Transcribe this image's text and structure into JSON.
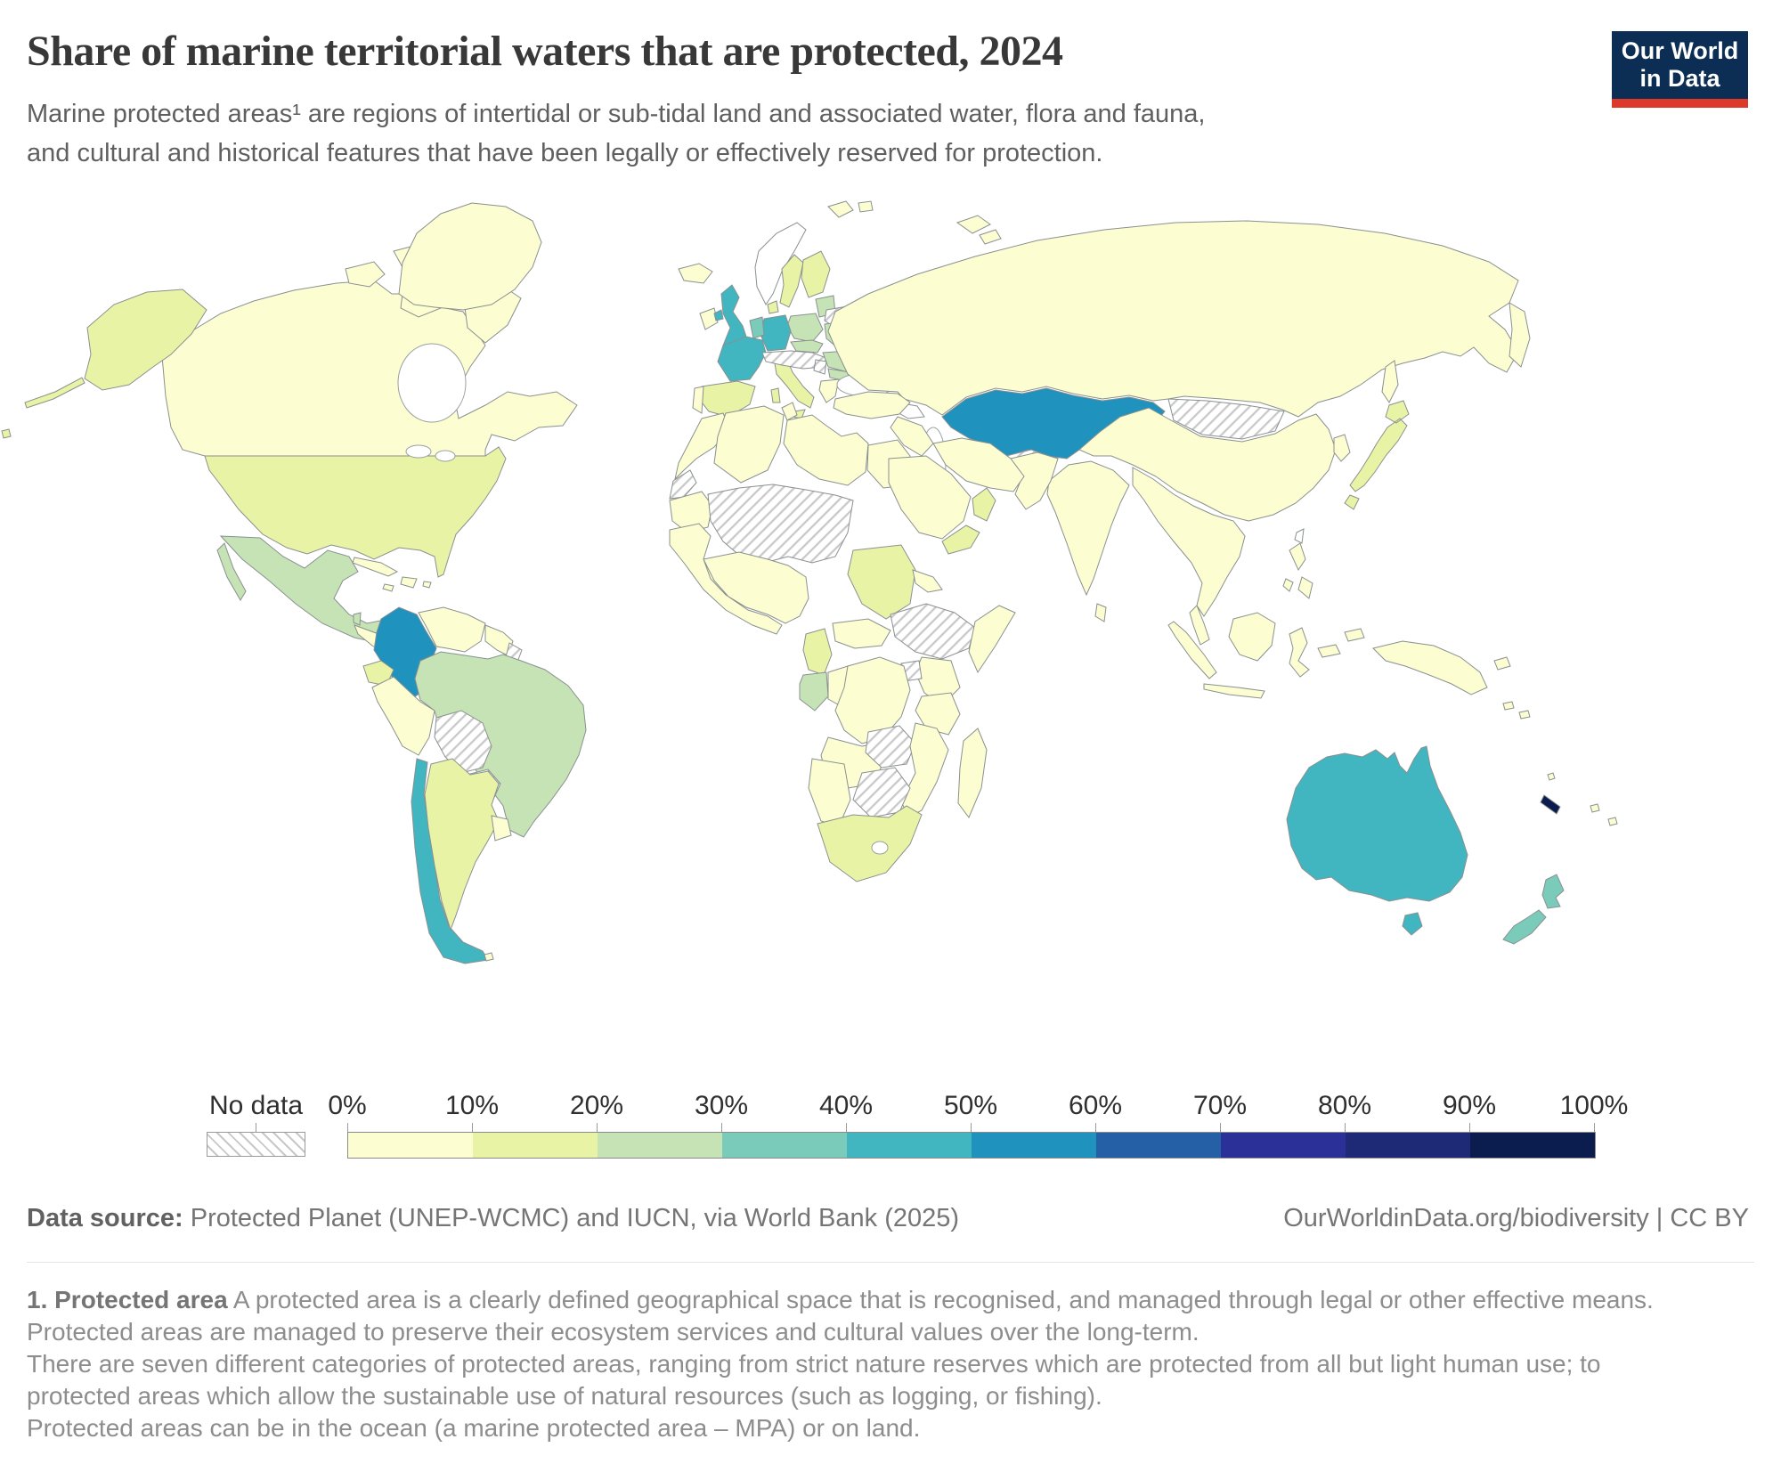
{
  "header": {
    "title": "Share of marine territorial waters that are protected, 2024",
    "subtitle": "Marine protected areas¹ are regions of intertidal or sub-tidal land and associated water, flora and fauna, and cultural and historical features that have been legally or effectively reserved for protection.",
    "logo": {
      "line1": "Our World",
      "line2": "in Data",
      "bg_color": "#0d2e54",
      "accent_color": "#dc392b"
    }
  },
  "legend": {
    "no_data_label": "No data",
    "ticks": [
      "0%",
      "10%",
      "20%",
      "30%",
      "40%",
      "50%",
      "60%",
      "70%",
      "80%",
      "90%",
      "100%"
    ],
    "bin_ranges": [
      "0-10%",
      "10-20%",
      "20-30%",
      "30-40%",
      "40-50%",
      "50-60%",
      "60-70%",
      "70-80%",
      "80-90%",
      "90-100%"
    ],
    "bin_colors": [
      "#fdfdd2",
      "#e9f3a5",
      "#c5e3b5",
      "#7acbba",
      "#41b5c0",
      "#1f92be",
      "#2560a7",
      "#2a3097",
      "#1e2a75",
      "#0b1c4e"
    ],
    "white_fill": "#ffffff"
  },
  "map": {
    "default_bin": 0,
    "country_bins": {
      "usa": 1,
      "mexico": 2,
      "belize": 2,
      "costa-rica-panama": 2,
      "colombia": 5,
      "french-guiana": "nodata",
      "ecuador": 1,
      "brazil": 2,
      "bolivia": "nodata",
      "paraguay": "nodata",
      "chile": 4,
      "argentina": 1,
      "uk": 4,
      "norway": "white",
      "sweden": 1,
      "finland": 1,
      "denmark": 1,
      "baltic-states": 2,
      "belarus": "nodata",
      "poland": 2,
      "germany": 4,
      "netherlands-belgium": 3,
      "france": 4,
      "spain": 1,
      "italy": 1,
      "czechia-slovakia": 2,
      "alpine-hungary": "nodata",
      "serbia": "nodata",
      "ukraine": 2,
      "romania": 2,
      "bulgaria": 2,
      "greece": 0,
      "moldova": "white",
      "western-sahara": "nodata",
      "sahel-mali-niger-chad": "nodata",
      "sudan": 1,
      "ethiopia-south-sudan": "nodata",
      "uganda": "nodata",
      "cameroon": 1,
      "gabon": 2,
      "zambia": "nodata",
      "zimbabwe-botswana": "nodata",
      "south-africa": 1,
      "kazakhstan": 5,
      "central-asia": "nodata",
      "mongolia": "nodata",
      "japan": 1,
      "yemen": 1,
      "oman-uae": 1,
      "taiwan": "white",
      "caucasus": "white",
      "australia": 4,
      "tasmania": 4,
      "new-zealand": 3,
      "new-caledonia": 9
    }
  },
  "footer": {
    "datasource_label": "Data source:",
    "datasource_text": " Protected Planet (UNEP-WCMC) and IUCN, via World Bank (2025)",
    "attribution": "OurWorldinData.org/biodiversity | CC BY"
  },
  "footnote": {
    "lead": "1. Protected area",
    "line1": " A protected area is a clearly defined geographical space that is recognised, and managed through legal or other effective means.",
    "line2": "Protected areas are managed to preserve their ecosystem services and cultural values over the long-term.",
    "line3": "There are seven different categories of protected areas, ranging from strict nature reserves which are protected from all but light human use; to",
    "line4": "protected areas which allow the sustainable use of natural resources (such as logging, or fishing).",
    "line5": "Protected areas can be in the ocean (a marine protected area – MPA) or on land."
  }
}
